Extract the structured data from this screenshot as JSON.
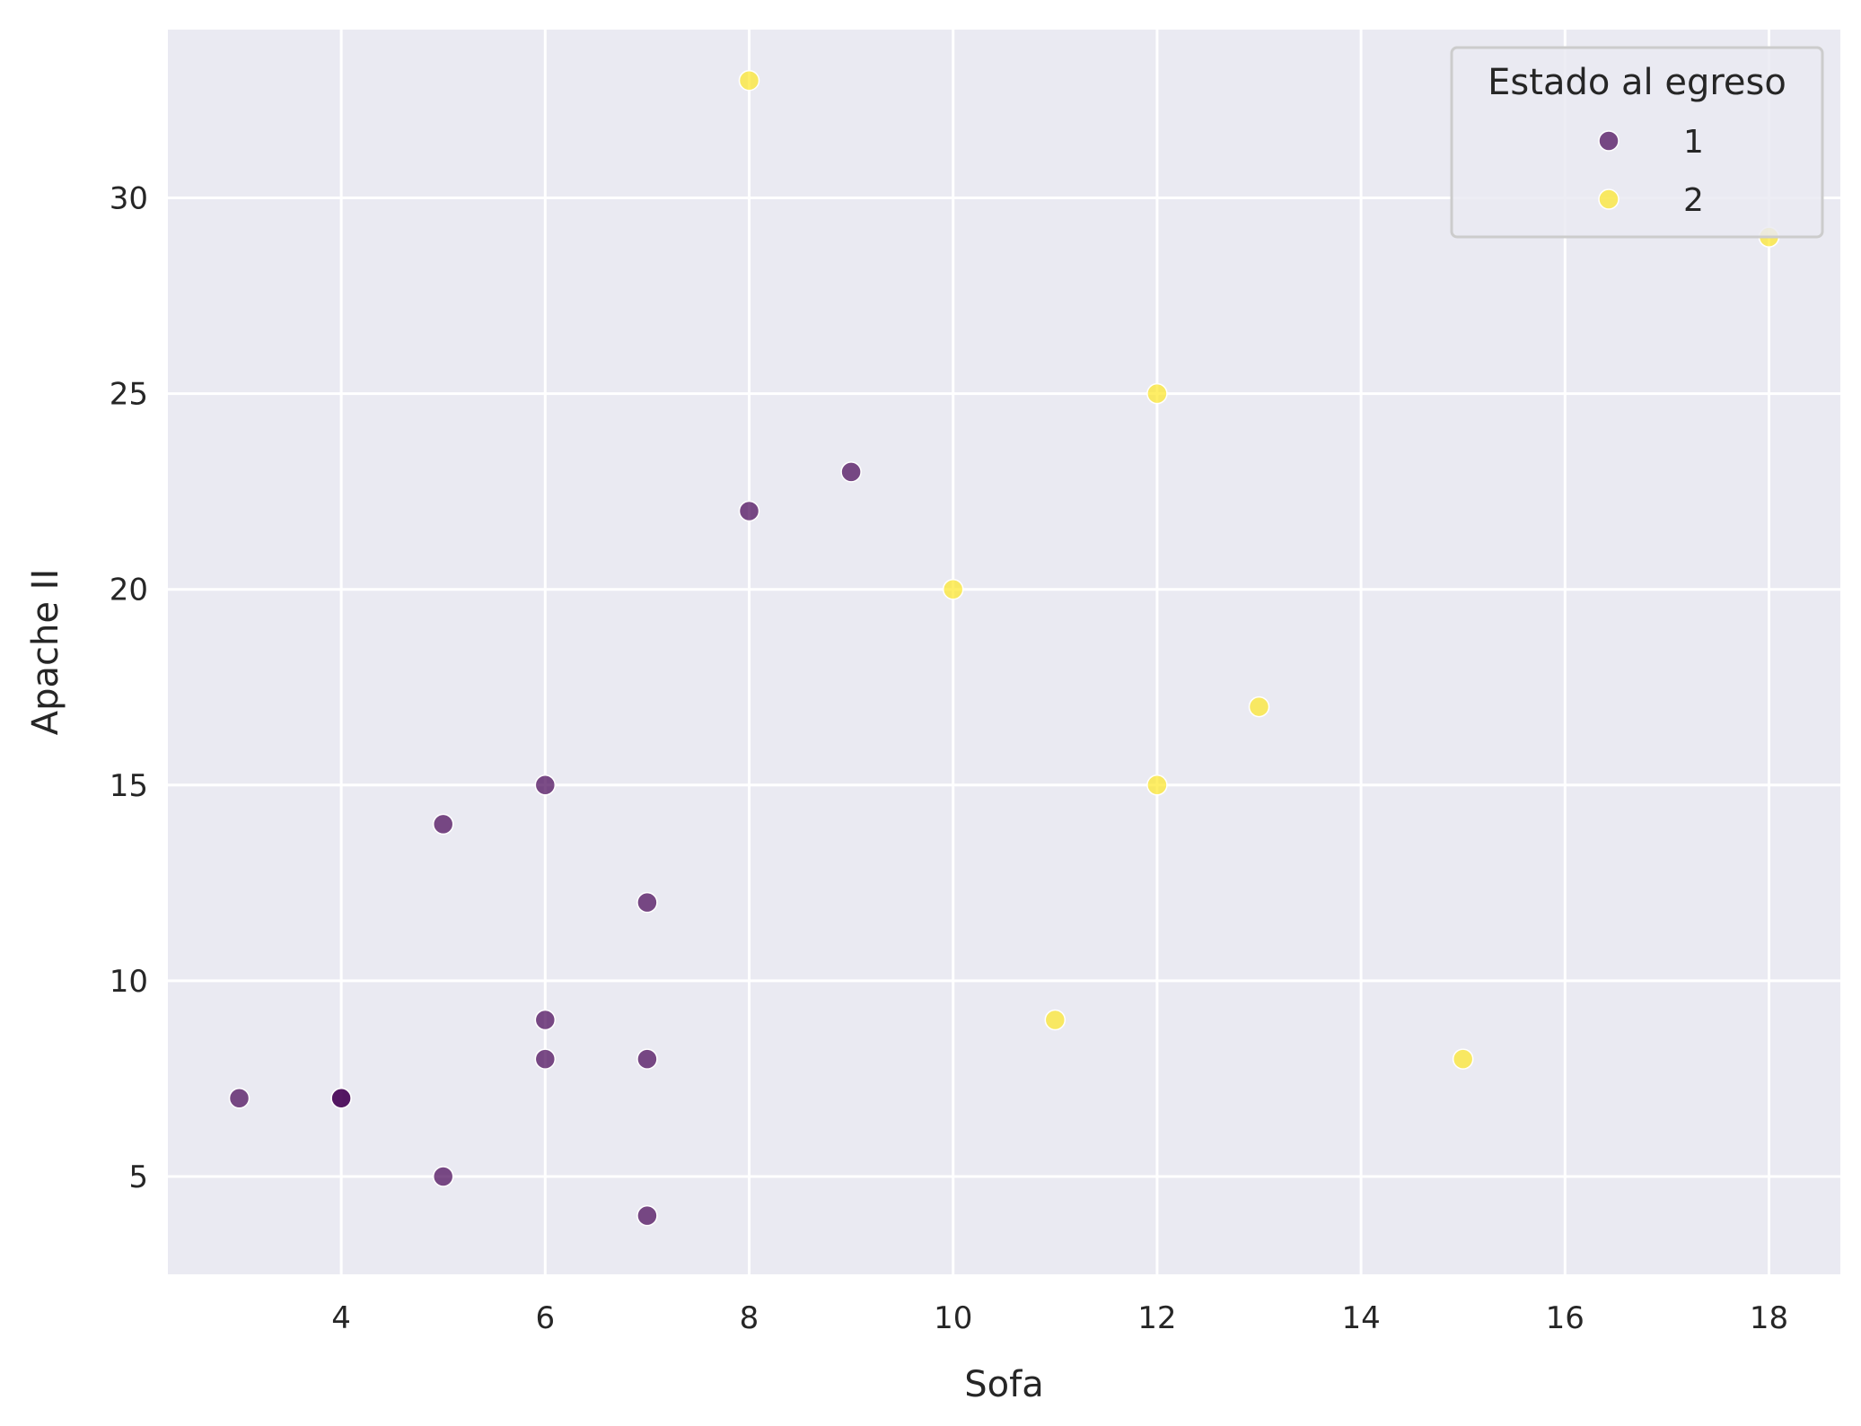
{
  "chart_data": {
    "type": "scatter",
    "xlabel": "Sofa",
    "ylabel": "Apache II",
    "xlim": [
      2.3,
      18.7
    ],
    "ylim": [
      2.5,
      34.3
    ],
    "x_ticks": [
      4,
      6,
      8,
      10,
      12,
      14,
      16,
      18
    ],
    "y_ticks": [
      5,
      10,
      15,
      20,
      25,
      30
    ],
    "grid": true,
    "legend": {
      "title": "Estado al egreso",
      "placement": "top-right"
    },
    "series": [
      {
        "name": "1",
        "color": "#440154",
        "points": [
          {
            "x": 3,
            "y": 7
          },
          {
            "x": 4,
            "y": 7
          },
          {
            "x": 4,
            "y": 7
          },
          {
            "x": 5,
            "y": 14
          },
          {
            "x": 5,
            "y": 5
          },
          {
            "x": 6,
            "y": 15
          },
          {
            "x": 6,
            "y": 9
          },
          {
            "x": 6,
            "y": 8
          },
          {
            "x": 7,
            "y": 12
          },
          {
            "x": 7,
            "y": 8
          },
          {
            "x": 7,
            "y": 4
          },
          {
            "x": 8,
            "y": 22
          },
          {
            "x": 9,
            "y": 23
          }
        ]
      },
      {
        "name": "2",
        "color": "#fde725",
        "points": [
          {
            "x": 8,
            "y": 33
          },
          {
            "x": 10,
            "y": 20
          },
          {
            "x": 11,
            "y": 9
          },
          {
            "x": 12,
            "y": 25
          },
          {
            "x": 12,
            "y": 15
          },
          {
            "x": 13,
            "y": 17
          },
          {
            "x": 15,
            "y": 8
          },
          {
            "x": 18,
            "y": 29
          }
        ]
      }
    ]
  },
  "style": {
    "plot_background": "#eaeaf2",
    "grid_color": "#ffffff",
    "text_color": "#262626"
  }
}
